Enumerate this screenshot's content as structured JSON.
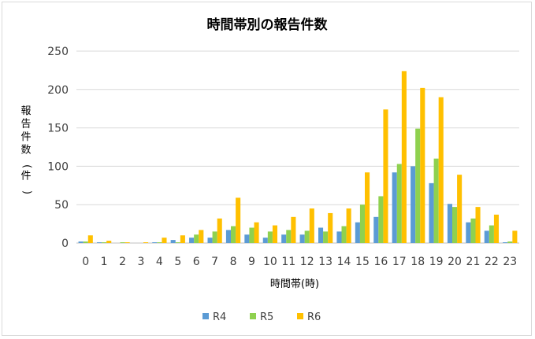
{
  "chart_data": {
    "type": "bar",
    "title": "時間帯別の報告件数",
    "xlabel": "時間帯(時)",
    "ylabel": "報告件数(件)",
    "ylim": [
      0,
      250
    ],
    "yticks": [
      0,
      50,
      100,
      150,
      200,
      250
    ],
    "grid": true,
    "legend_position": "bottom",
    "categories": [
      "0",
      "1",
      "2",
      "3",
      "4",
      "5",
      "6",
      "7",
      "8",
      "9",
      "10",
      "11",
      "12",
      "13",
      "14",
      "15",
      "16",
      "17",
      "18",
      "19",
      "20",
      "21",
      "22",
      "23"
    ],
    "series": [
      {
        "name": "R4",
        "color": "#5b9bd5",
        "values": [
          2,
          1,
          0,
          0,
          1,
          4,
          7,
          7,
          17,
          11,
          7,
          11,
          11,
          20,
          15,
          27,
          34,
          92,
          100,
          78,
          51,
          27,
          16,
          1
        ]
      },
      {
        "name": "R5",
        "color": "#8fd14f",
        "values": [
          2,
          1,
          1,
          0,
          1,
          1,
          11,
          15,
          22,
          20,
          15,
          17,
          16,
          15,
          22,
          50,
          61,
          103,
          149,
          110,
          47,
          32,
          23,
          2
        ]
      },
      {
        "name": "R6",
        "color": "#ffc000",
        "values": [
          10,
          3,
          1,
          1,
          7,
          10,
          17,
          32,
          59,
          27,
          23,
          34,
          45,
          39,
          45,
          92,
          174,
          224,
          202,
          190,
          89,
          47,
          37,
          16
        ]
      }
    ]
  }
}
